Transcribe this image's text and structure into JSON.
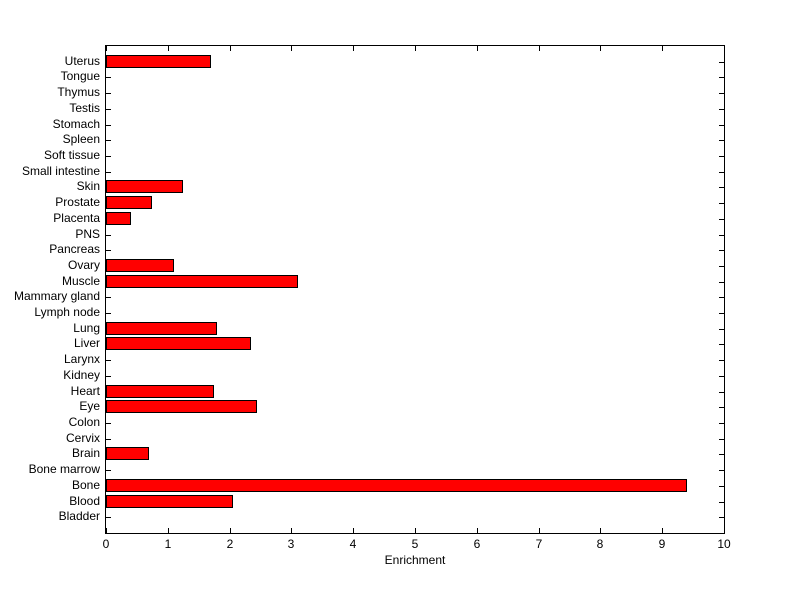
{
  "figure": {
    "background": "#FFFFFF",
    "axis_color": "#000000"
  },
  "chart_data": {
    "type": "bar",
    "orientation": "horizontal",
    "title": "",
    "xlabel": "Enrichment",
    "ylabel": "",
    "xlim": [
      0,
      10
    ],
    "xticks": [
      0,
      1,
      2,
      3,
      4,
      5,
      6,
      7,
      8,
      9,
      10
    ],
    "grid": false,
    "legend_position": "none",
    "bar_color": "#FF0000",
    "bar_edge_color": "#000000",
    "categories_order": "top-to-bottom",
    "categories": [
      "Uterus",
      "Tongue",
      "Thymus",
      "Testis",
      "Stomach",
      "Spleen",
      "Soft tissue",
      "Small intestine",
      "Skin",
      "Prostate",
      "Placenta",
      "PNS",
      "Pancreas",
      "Ovary",
      "Muscle",
      "Mammary gland",
      "Lymph node",
      "Lung",
      "Liver",
      "Larynx",
      "Kidney",
      "Heart",
      "Eye",
      "Colon",
      "Cervix",
      "Brain",
      "Bone marrow",
      "Bone",
      "Blood",
      "Bladder"
    ],
    "values": [
      1.7,
      0,
      0,
      0,
      0,
      0,
      0,
      0,
      1.25,
      0.75,
      0.4,
      0,
      0,
      1.1,
      3.1,
      0,
      0,
      1.8,
      2.35,
      0,
      0,
      1.75,
      2.45,
      0,
      0,
      0.7,
      0,
      9.4,
      2.05,
      0
    ]
  }
}
